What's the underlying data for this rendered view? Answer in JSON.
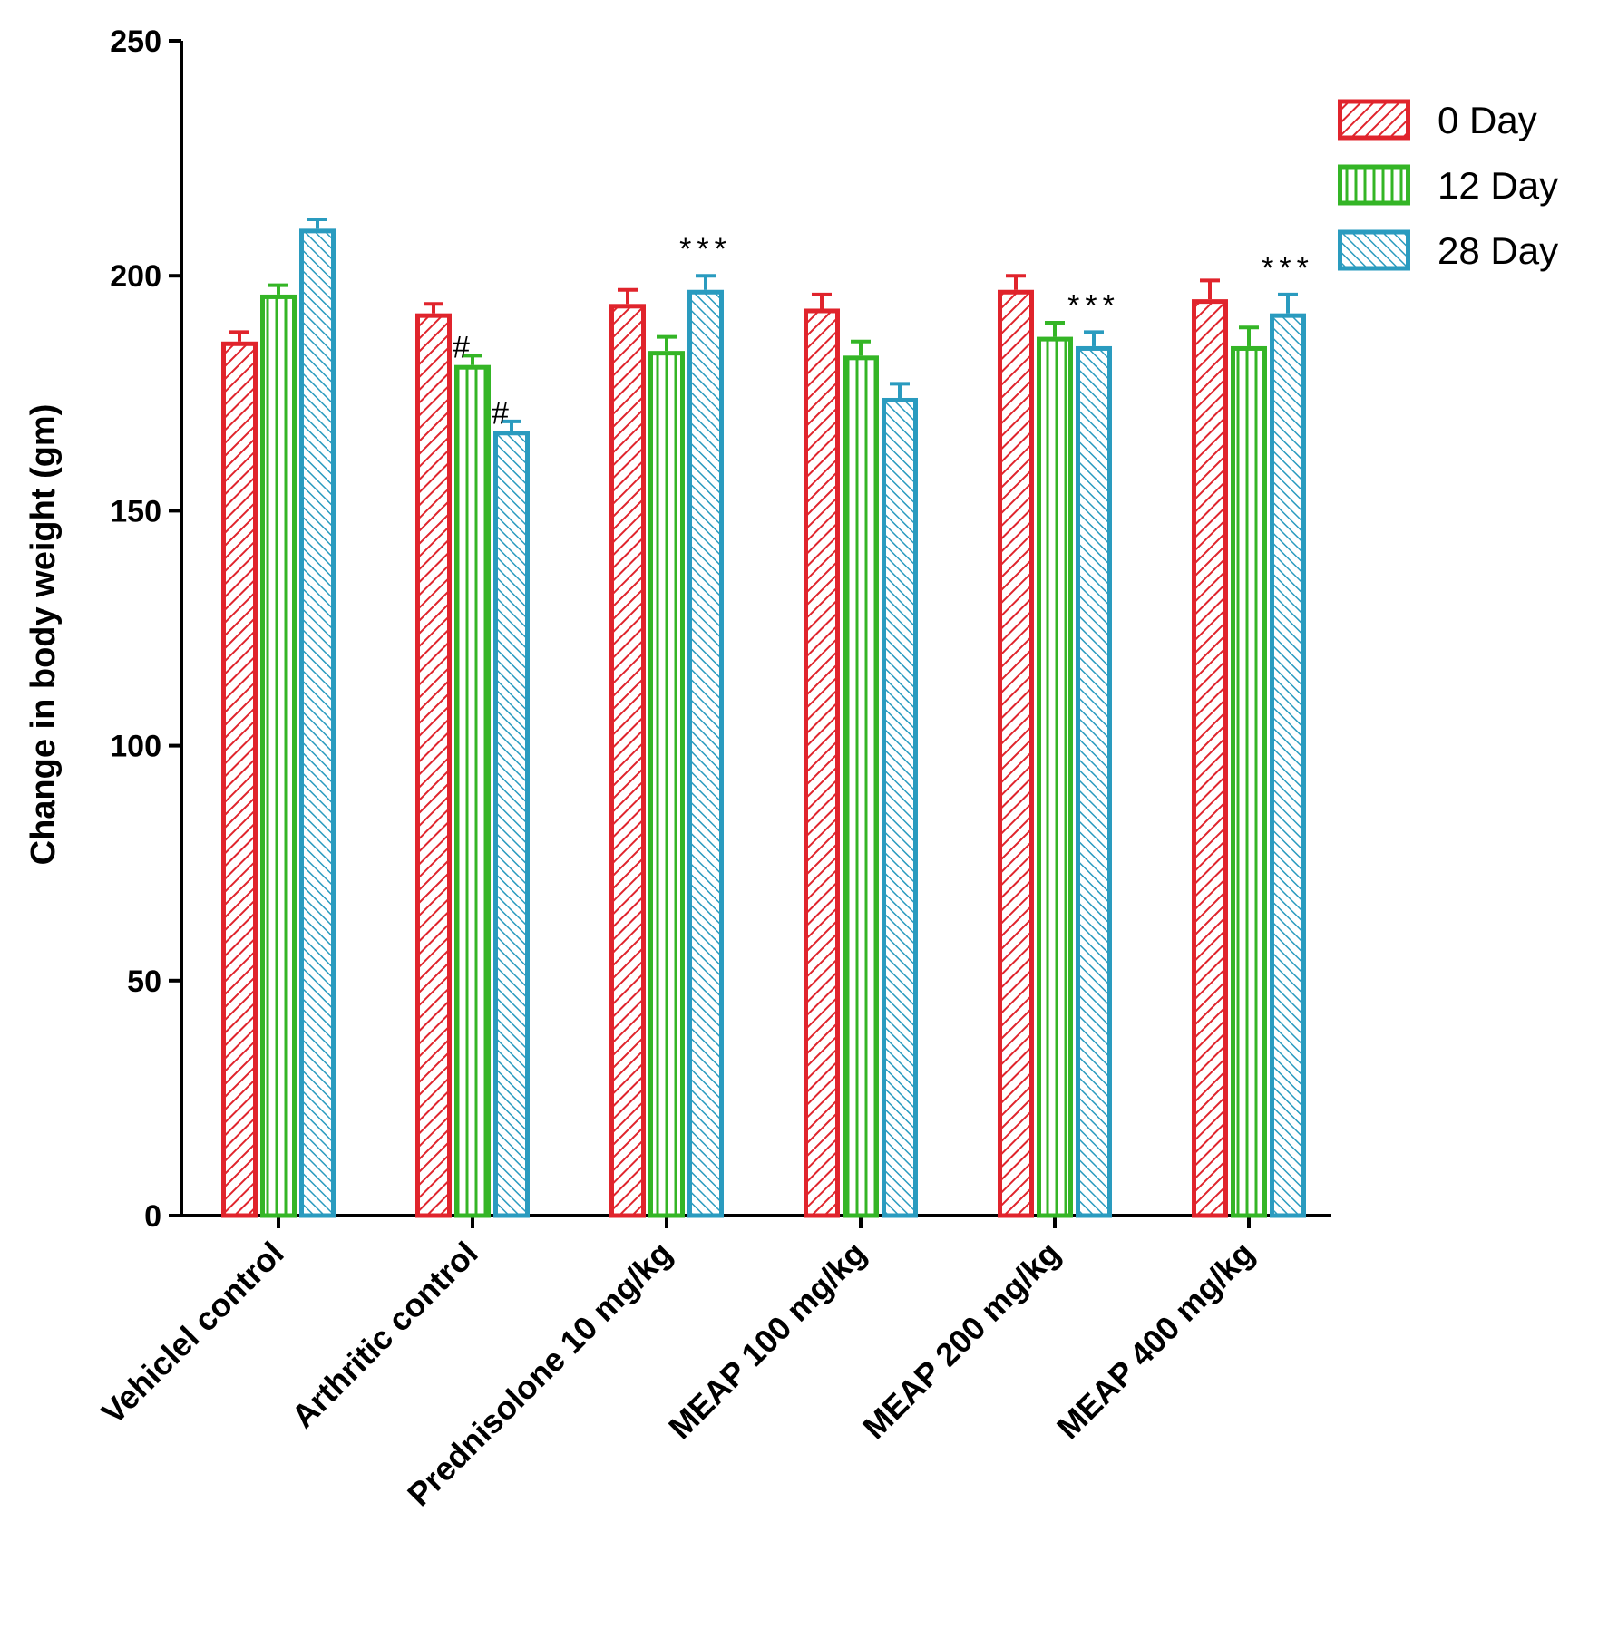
{
  "chart_data": {
    "type": "bar",
    "title": "",
    "xlabel": "",
    "ylabel": "Change in body weight (gm)",
    "ylim": [
      0,
      250
    ],
    "yticks": [
      0,
      50,
      100,
      150,
      200,
      250
    ],
    "grid": false,
    "legend_position": "top-right",
    "categories": [
      "Vehiclel control",
      "Arthritic control",
      "Prednisolone 10 mg/kg",
      "MEAP 100 mg/kg",
      "MEAP 200 mg/kg",
      "MEAP 400 mg/kg"
    ],
    "series": [
      {
        "name": "0 Day",
        "color": "#e0242c",
        "pattern": "diagonal",
        "values": [
          186,
          192,
          194,
          193,
          197,
          195
        ],
        "errors": [
          2,
          2,
          3,
          3,
          3,
          4
        ],
        "annotations": [
          "",
          "",
          "",
          "",
          "",
          ""
        ]
      },
      {
        "name": "12 Day",
        "color": "#34b526",
        "pattern": "vertical",
        "values": [
          196,
          181,
          184,
          183,
          187,
          185
        ],
        "errors": [
          2,
          2,
          3,
          3,
          3,
          4
        ],
        "annotations": [
          "",
          "#",
          "",
          "",
          "",
          ""
        ]
      },
      {
        "name": "28 Day",
        "color": "#2a9bbf",
        "pattern": "diagonal-reverse",
        "values": [
          210,
          167,
          197,
          174,
          185,
          192
        ],
        "errors": [
          2,
          2,
          3,
          3,
          3,
          4
        ],
        "annotations": [
          "",
          "#",
          "***",
          "",
          "***",
          "***"
        ]
      }
    ]
  }
}
